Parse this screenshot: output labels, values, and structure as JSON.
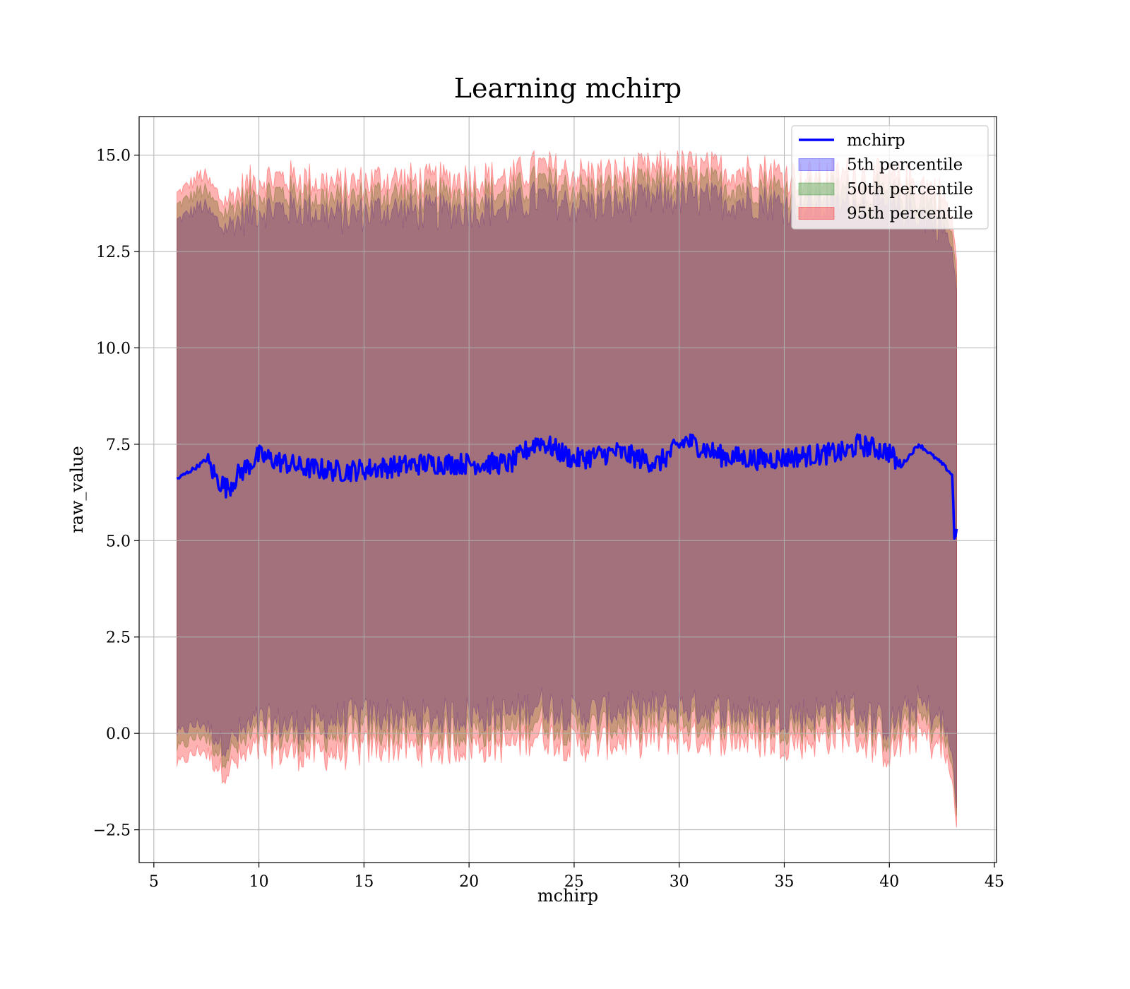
{
  "chart_data": {
    "type": "area",
    "title": "Learning mchirp",
    "xlabel": "mchirp",
    "ylabel": "raw_value",
    "xlim": [
      4.3,
      45.1
    ],
    "ylim": [
      -3.35,
      16.0
    ],
    "xticks": [
      5,
      10,
      15,
      20,
      25,
      30,
      35,
      40,
      45
    ],
    "xtick_labels": [
      "5",
      "10",
      "15",
      "20",
      "25",
      "30",
      "35",
      "40",
      "45"
    ],
    "yticks": [
      -2.5,
      0.0,
      2.5,
      5.0,
      7.5,
      10.0,
      12.5,
      15.0
    ],
    "ytick_labels": [
      "−2.5",
      "0.0",
      "2.5",
      "5.0",
      "7.5",
      "10.0",
      "12.5",
      "15.0"
    ],
    "grid": true,
    "legend_position": "top-right",
    "x_range": [
      6.1,
      43.2
    ],
    "colors": {
      "line": "#0000ff",
      "band_5th": "#0000ff",
      "band_50th": "#008000",
      "band_95th": "#ff0000",
      "grid": "#b0b0b0"
    },
    "series": [
      {
        "name": "mchirp",
        "kind": "line",
        "x": [
          6.1,
          7.0,
          7.5,
          8.0,
          8.5,
          9.0,
          10.0,
          12.0,
          14.0,
          16.0,
          18.0,
          20.0,
          22.0,
          23.3,
          25.0,
          27.0,
          29.0,
          30.3,
          32.0,
          34.0,
          36.0,
          38.0,
          38.5,
          40.0,
          40.5,
          41.4,
          42.5,
          43.0,
          43.1,
          43.2
        ],
        "values": [
          6.6,
          6.9,
          7.1,
          6.6,
          6.35,
          6.7,
          7.2,
          6.9,
          6.8,
          6.9,
          7.0,
          7.0,
          7.0,
          7.6,
          7.1,
          7.3,
          7.0,
          7.6,
          7.2,
          7.1,
          7.2,
          7.3,
          7.5,
          7.3,
          6.9,
          7.5,
          7.0,
          6.7,
          4.95,
          5.3
        ]
      },
      {
        "name": "5th percentile",
        "kind": "band",
        "x": [
          6.1,
          7.3,
          8.3,
          10.0,
          12.0,
          14.0,
          16.0,
          18.0,
          20.0,
          22.0,
          23.3,
          25.0,
          27.0,
          30.0,
          32.0,
          34.0,
          36.0,
          38.0,
          40.0,
          41.4,
          42.5,
          43.0,
          43.2
        ],
        "lower": [
          0.0,
          0.3,
          -0.3,
          0.3,
          0.2,
          0.4,
          0.5,
          0.4,
          0.5,
          0.5,
          0.8,
          0.5,
          0.6,
          0.7,
          0.6,
          0.5,
          0.5,
          0.7,
          0.2,
          0.8,
          0.3,
          -0.5,
          -2.0
        ],
        "upper": [
          13.3,
          13.7,
          13.1,
          13.6,
          13.6,
          13.4,
          13.6,
          13.5,
          13.6,
          13.6,
          13.9,
          13.7,
          13.7,
          13.9,
          13.8,
          13.8,
          13.6,
          13.7,
          13.6,
          13.5,
          13.2,
          12.5,
          11.5
        ]
      },
      {
        "name": "50th percentile",
        "kind": "band",
        "x": [
          6.1,
          7.3,
          8.3,
          10.0,
          12.0,
          14.0,
          16.0,
          18.0,
          20.0,
          22.0,
          23.3,
          25.0,
          27.0,
          30.0,
          32.0,
          34.0,
          36.0,
          38.0,
          40.0,
          41.4,
          42.5,
          43.0,
          43.2
        ],
        "lower": [
          -0.4,
          0.0,
          -0.6,
          0.0,
          -0.1,
          0.0,
          0.1,
          0.0,
          0.1,
          0.1,
          0.4,
          0.1,
          0.2,
          0.3,
          0.3,
          0.2,
          0.2,
          0.4,
          -0.1,
          0.4,
          0.0,
          -0.8,
          -2.2
        ],
        "upper": [
          13.7,
          14.1,
          13.5,
          14.0,
          14.0,
          13.8,
          14.0,
          13.9,
          14.0,
          14.0,
          14.3,
          14.1,
          14.1,
          14.3,
          14.2,
          14.2,
          14.0,
          14.1,
          14.0,
          13.9,
          13.6,
          12.9,
          11.9
        ]
      },
      {
        "name": "95th percentile",
        "kind": "band",
        "x": [
          6.1,
          7.3,
          8.3,
          10.0,
          12.0,
          14.0,
          16.0,
          18.0,
          20.0,
          22.0,
          23.3,
          25.0,
          27.0,
          30.0,
          32.0,
          34.0,
          36.0,
          38.0,
          40.0,
          41.4,
          42.5,
          43.0,
          43.2
        ],
        "lower": [
          -0.8,
          -0.4,
          -1.0,
          -0.4,
          -0.5,
          -0.5,
          -0.3,
          -0.4,
          -0.3,
          -0.3,
          0.0,
          -0.3,
          -0.2,
          -0.1,
          -0.1,
          -0.2,
          -0.2,
          0.0,
          -0.5,
          0.0,
          -0.4,
          -1.2,
          -2.5
        ],
        "upper": [
          14.0,
          14.5,
          13.8,
          14.4,
          14.4,
          14.2,
          14.4,
          14.3,
          14.4,
          14.4,
          14.7,
          14.5,
          14.5,
          14.7,
          14.6,
          14.6,
          14.4,
          14.5,
          14.4,
          14.3,
          14.0,
          13.3,
          12.3
        ]
      }
    ]
  }
}
